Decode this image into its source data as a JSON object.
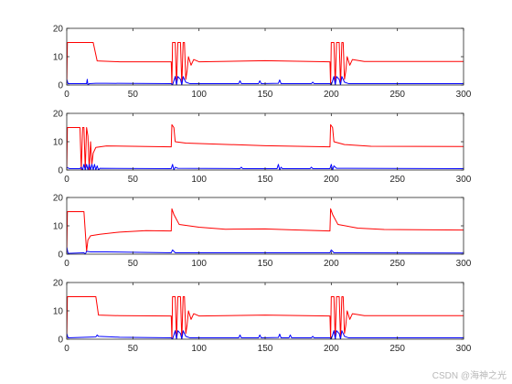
{
  "watermark": "CSDN @海神之光",
  "colors": {
    "series_red": "#ff0000",
    "series_blue": "#0000ff",
    "axes": "#262626"
  },
  "chart_data": [
    {
      "type": "line",
      "xlim": [
        0,
        300
      ],
      "ylim": [
        0,
        20
      ],
      "xticks": [
        0,
        50,
        100,
        150,
        200,
        250,
        300
      ],
      "yticks": [
        0,
        10,
        20
      ],
      "grid": false,
      "series": [
        {
          "color": "#ff0000",
          "points": [
            [
              0,
              0
            ],
            [
              0.5,
              15
            ],
            [
              20,
              15
            ],
            [
              23,
              8.5
            ],
            [
              40,
              8.2
            ],
            [
              79,
              8.2
            ],
            [
              79.5,
              0
            ],
            [
              80,
              15
            ],
            [
              82,
              15
            ],
            [
              83,
              0
            ],
            [
              84,
              15
            ],
            [
              86,
              15
            ],
            [
              87,
              0
            ],
            [
              88,
              15
            ],
            [
              89,
              15
            ],
            [
              90,
              2
            ],
            [
              91,
              5
            ],
            [
              92,
              10
            ],
            [
              94,
              7
            ],
            [
              96,
              9
            ],
            [
              100,
              8.2
            ],
            [
              150,
              8.6
            ],
            [
              199,
              8.2
            ],
            [
              199.5,
              0
            ],
            [
              200,
              15
            ],
            [
              202,
              15
            ],
            [
              203,
              0
            ],
            [
              204,
              15
            ],
            [
              206,
              15
            ],
            [
              207,
              0
            ],
            [
              208,
              15
            ],
            [
              209,
              15
            ],
            [
              210,
              2
            ],
            [
              211,
              5
            ],
            [
              212,
              10
            ],
            [
              214,
              7
            ],
            [
              216,
              9
            ],
            [
              225,
              8.3
            ],
            [
              300,
              8.3
            ]
          ]
        },
        {
          "color": "#0000ff",
          "points": [
            [
              0,
              2
            ],
            [
              1,
              0.5
            ],
            [
              15,
              0.5
            ],
            [
              15.5,
              2
            ],
            [
              16,
              0
            ],
            [
              17,
              0.5
            ],
            [
              22,
              0.6
            ],
            [
              30,
              0.6
            ],
            [
              79,
              0.5
            ],
            [
              80,
              0
            ],
            [
              82,
              3
            ],
            [
              83,
              0
            ],
            [
              84,
              3
            ],
            [
              86,
              2
            ],
            [
              87,
              0
            ],
            [
              88,
              3
            ],
            [
              90,
              1
            ],
            [
              93,
              0.5
            ],
            [
              130,
              0.5
            ],
            [
              131,
              1.5
            ],
            [
              132,
              0.5
            ],
            [
              145,
              0.5
            ],
            [
              146,
              1.5
            ],
            [
              147,
              0.5
            ],
            [
              160,
              0.6
            ],
            [
              161,
              1.8
            ],
            [
              162,
              0.5
            ],
            [
              185,
              0.5
            ],
            [
              186,
              1
            ],
            [
              187,
              0.5
            ],
            [
              199,
              0.5
            ],
            [
              200,
              0
            ],
            [
              202,
              3
            ],
            [
              203,
              0
            ],
            [
              204,
              3
            ],
            [
              206,
              2
            ],
            [
              207,
              0
            ],
            [
              208,
              3
            ],
            [
              210,
              1
            ],
            [
              213,
              0.5
            ],
            [
              300,
              0.5
            ]
          ]
        }
      ]
    },
    {
      "type": "line",
      "xlim": [
        0,
        300
      ],
      "ylim": [
        0,
        20
      ],
      "xticks": [
        0,
        50,
        100,
        150,
        200,
        250,
        300
      ],
      "yticks": [
        0,
        10,
        20
      ],
      "grid": false,
      "series": [
        {
          "color": "#ff0000",
          "points": [
            [
              0,
              0
            ],
            [
              0.5,
              15
            ],
            [
              10,
              15
            ],
            [
              11,
              0
            ],
            [
              12,
              15
            ],
            [
              13,
              15
            ],
            [
              14,
              0
            ],
            [
              15,
              15
            ],
            [
              16,
              12
            ],
            [
              17,
              0
            ],
            [
              18,
              10
            ],
            [
              19,
              2
            ],
            [
              20,
              6
            ],
            [
              22,
              8
            ],
            [
              30,
              8.5
            ],
            [
              79,
              8.2
            ],
            [
              79.5,
              16
            ],
            [
              81,
              15
            ],
            [
              82,
              10
            ],
            [
              90,
              9.5
            ],
            [
              150,
              8.6
            ],
            [
              199,
              8.2
            ],
            [
              199.5,
              16
            ],
            [
              201,
              15
            ],
            [
              202,
              10
            ],
            [
              210,
              9
            ],
            [
              230,
              8.4
            ],
            [
              300,
              8.3
            ]
          ]
        },
        {
          "color": "#0000ff",
          "points": [
            [
              0,
              1
            ],
            [
              2,
              0.5
            ],
            [
              10,
              0.5
            ],
            [
              11,
              1
            ],
            [
              12,
              0
            ],
            [
              13,
              2
            ],
            [
              14,
              0
            ],
            [
              15,
              2
            ],
            [
              16,
              0
            ],
            [
              17,
              2
            ],
            [
              18,
              0
            ],
            [
              19,
              2
            ],
            [
              20,
              0
            ],
            [
              21,
              2
            ],
            [
              22,
              0
            ],
            [
              23,
              1.5
            ],
            [
              24,
              0
            ],
            [
              25,
              0.6
            ],
            [
              79,
              0.5
            ],
            [
              80,
              2
            ],
            [
              81,
              0
            ],
            [
              82,
              1
            ],
            [
              84,
              0.6
            ],
            [
              131,
              0.5
            ],
            [
              132,
              1
            ],
            [
              133,
              0.5
            ],
            [
              159,
              0.5
            ],
            [
              160,
              2
            ],
            [
              161,
              0
            ],
            [
              162,
              1
            ],
            [
              163,
              0.5
            ],
            [
              184,
              0.5
            ],
            [
              185,
              1
            ],
            [
              186,
              0.5
            ],
            [
              199,
              0.5
            ],
            [
              200,
              2
            ],
            [
              201,
              0
            ],
            [
              202,
              1.5
            ],
            [
              204,
              0.6
            ],
            [
              300,
              0.5
            ]
          ]
        }
      ]
    },
    {
      "type": "line",
      "xlim": [
        0,
        300
      ],
      "ylim": [
        0,
        20
      ],
      "xticks": [
        0,
        50,
        100,
        150,
        200,
        250,
        300
      ],
      "yticks": [
        0,
        10,
        20
      ],
      "grid": false,
      "series": [
        {
          "color": "#ff0000",
          "points": [
            [
              0,
              0
            ],
            [
              0.5,
              15
            ],
            [
              13,
              15
            ],
            [
              14,
              8
            ],
            [
              15,
              1
            ],
            [
              16,
              5
            ],
            [
              18,
              6.5
            ],
            [
              25,
              7
            ],
            [
              40,
              7.8
            ],
            [
              60,
              8.3
            ],
            [
              79,
              8.2
            ],
            [
              79.5,
              16
            ],
            [
              81,
              14
            ],
            [
              85,
              10.5
            ],
            [
              100,
              9.5
            ],
            [
              120,
              8.8
            ],
            [
              150,
              8.9
            ],
            [
              170,
              8.6
            ],
            [
              199,
              8.2
            ],
            [
              199.5,
              16
            ],
            [
              201,
              14
            ],
            [
              205,
              10.5
            ],
            [
              220,
              9.2
            ],
            [
              240,
              8.7
            ],
            [
              300,
              8.5
            ]
          ]
        },
        {
          "color": "#0000ff",
          "points": [
            [
              0,
              2.5
            ],
            [
              1,
              0.3
            ],
            [
              13,
              0.5
            ],
            [
              14,
              0
            ],
            [
              15,
              1
            ],
            [
              18,
              0.8
            ],
            [
              30,
              0.8
            ],
            [
              79,
              0.5
            ],
            [
              80,
              1.5
            ],
            [
              82,
              0.5
            ],
            [
              199,
              0.5
            ],
            [
              200,
              1.5
            ],
            [
              202,
              0.5
            ],
            [
              300,
              0.4
            ]
          ]
        }
      ]
    },
    {
      "type": "line",
      "xlim": [
        0,
        300
      ],
      "ylim": [
        0,
        20
      ],
      "xticks": [
        0,
        50,
        100,
        150,
        200,
        250,
        300
      ],
      "yticks": [
        0,
        10,
        20
      ],
      "grid": false,
      "series": [
        {
          "color": "#ff0000",
          "points": [
            [
              0,
              0
            ],
            [
              0.5,
              15
            ],
            [
              22,
              15
            ],
            [
              24,
              8.5
            ],
            [
              40,
              8.3
            ],
            [
              79,
              8.2
            ],
            [
              79.5,
              0
            ],
            [
              80,
              15
            ],
            [
              82,
              15
            ],
            [
              83,
              0
            ],
            [
              84,
              15
            ],
            [
              86,
              15
            ],
            [
              87,
              0
            ],
            [
              88,
              15
            ],
            [
              89,
              15
            ],
            [
              90,
              2
            ],
            [
              91,
              5
            ],
            [
              92,
              10
            ],
            [
              94,
              7
            ],
            [
              96,
              9
            ],
            [
              100,
              8.2
            ],
            [
              150,
              8.5
            ],
            [
              199,
              8.2
            ],
            [
              199.5,
              0
            ],
            [
              200,
              15
            ],
            [
              202,
              15
            ],
            [
              203,
              0
            ],
            [
              204,
              15
            ],
            [
              206,
              15
            ],
            [
              207,
              0
            ],
            [
              208,
              15
            ],
            [
              209,
              15
            ],
            [
              210,
              2
            ],
            [
              211,
              5
            ],
            [
              212,
              10
            ],
            [
              214,
              7
            ],
            [
              216,
              9
            ],
            [
              225,
              8.3
            ],
            [
              300,
              8.3
            ]
          ]
        },
        {
          "color": "#0000ff",
          "points": [
            [
              0,
              2
            ],
            [
              1,
              0.5
            ],
            [
              22,
              0.8
            ],
            [
              23,
              1.5
            ],
            [
              24,
              1
            ],
            [
              40,
              0.7
            ],
            [
              79,
              0.5
            ],
            [
              80,
              0
            ],
            [
              82,
              3
            ],
            [
              83,
              0
            ],
            [
              84,
              3
            ],
            [
              86,
              2
            ],
            [
              87,
              0
            ],
            [
              88,
              3
            ],
            [
              90,
              1
            ],
            [
              93,
              0.5
            ],
            [
              130,
              0.5
            ],
            [
              131,
              1.5
            ],
            [
              132,
              0.5
            ],
            [
              145,
              0.5
            ],
            [
              146,
              1.5
            ],
            [
              147,
              0.5
            ],
            [
              160,
              0.6
            ],
            [
              161,
              1.8
            ],
            [
              162,
              0.5
            ],
            [
              168,
              0.5
            ],
            [
              169,
              1.5
            ],
            [
              170,
              0.5
            ],
            [
              185,
              0.5
            ],
            [
              186,
              1
            ],
            [
              187,
              0.5
            ],
            [
              199,
              0.5
            ],
            [
              200,
              0
            ],
            [
              202,
              3
            ],
            [
              203,
              0
            ],
            [
              204,
              3
            ],
            [
              206,
              2
            ],
            [
              207,
              0
            ],
            [
              208,
              3
            ],
            [
              210,
              1
            ],
            [
              213,
              0.5
            ],
            [
              300,
              0.5
            ]
          ]
        }
      ]
    }
  ]
}
